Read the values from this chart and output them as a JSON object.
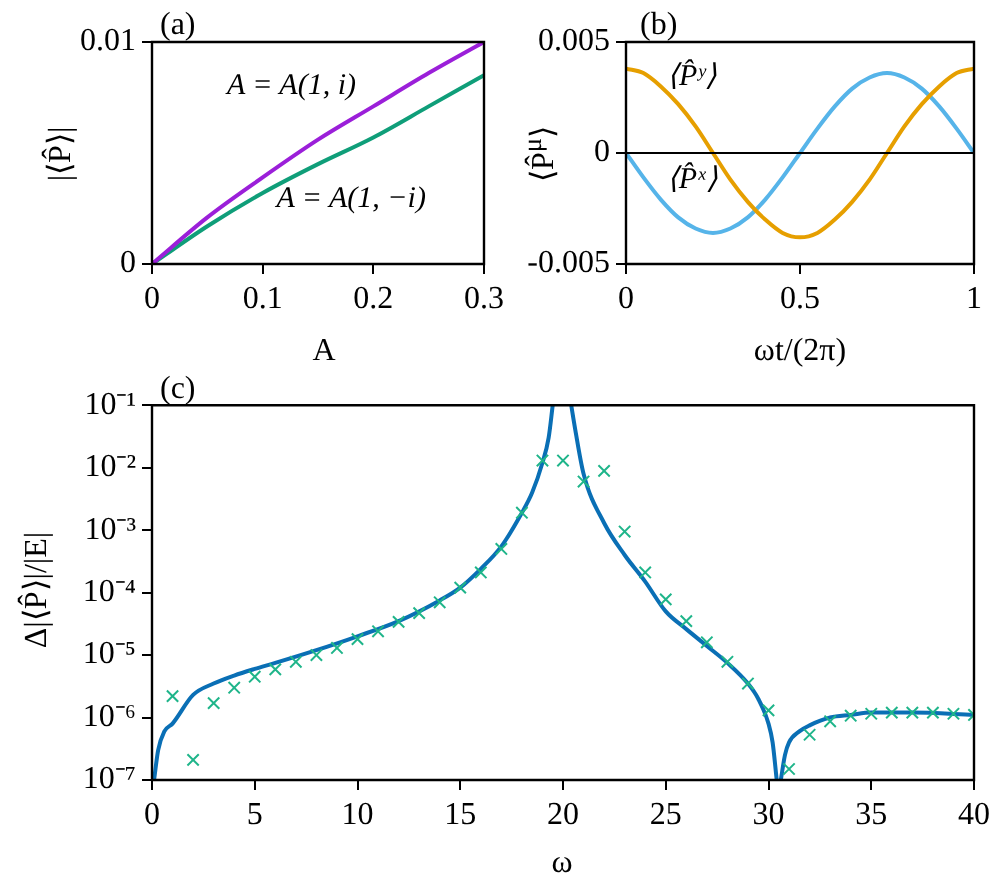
{
  "chart_data": [
    {
      "type": "line",
      "title": "(a)",
      "xlabel": "A",
      "ylabel": "|⟨P̂⟩|",
      "x": [
        0,
        0.05,
        0.1,
        0.15,
        0.2,
        0.25,
        0.3
      ],
      "series": [
        {
          "name": "A = A(1, i)",
          "color": "#9b1fd9",
          "values": [
            0,
            0.0021,
            0.0039,
            0.0056,
            0.0071,
            0.0086,
            0.01
          ]
        },
        {
          "name": "A = A(1, −i)",
          "color": "#0f9e79",
          "values": [
            0,
            0.0017,
            0.0032,
            0.0045,
            0.0057,
            0.0071,
            0.0085
          ]
        }
      ],
      "xlim": [
        0,
        0.3
      ],
      "xticks": [
        0,
        0.1,
        0.2,
        0.3
      ],
      "ylim": [
        0,
        0.01
      ],
      "yticks": [
        0,
        0.01
      ]
    },
    {
      "type": "line",
      "title": "(b)",
      "xlabel": "ωt/(2π)",
      "ylabel": "⟨P̂$^{μ}$⟩",
      "x": [
        0,
        0.05,
        0.1,
        0.15,
        0.2,
        0.25,
        0.3,
        0.35,
        0.4,
        0.45,
        0.5,
        0.55,
        0.6,
        0.65,
        0.7,
        0.75,
        0.8,
        0.85,
        0.9,
        0.95,
        1
      ],
      "series": [
        {
          "name": "⟨P̂ʸ⟩",
          "color": "#e69f00",
          "values": [
            0.0038,
            0.0036,
            0.003,
            0.0022,
            0.0012,
            0,
            -0.0012,
            -0.0022,
            -0.003,
            -0.0036,
            -0.0038,
            -0.0036,
            -0.003,
            -0.0022,
            -0.0012,
            0,
            0.0012,
            0.0022,
            0.003,
            0.0036,
            0.0038
          ]
        },
        {
          "name": "⟨P̂ˣ⟩",
          "color": "#56b4e9",
          "values": [
            0,
            -0.0011,
            -0.0021,
            -0.0029,
            -0.0034,
            -0.0036,
            -0.0034,
            -0.0029,
            -0.0021,
            -0.0011,
            0,
            0.0011,
            0.0021,
            0.0029,
            0.0034,
            0.0036,
            0.0034,
            0.0029,
            0.0021,
            0.0011,
            0
          ]
        }
      ],
      "xlim": [
        0,
        1
      ],
      "xticks": [
        0,
        0.5,
        1
      ],
      "ylim": [
        -0.005,
        0.005
      ],
      "yticks": [
        -0.005,
        0,
        0.005
      ],
      "ref_lines": [
        {
          "axis": "y",
          "value": 0,
          "color": "#000000"
        }
      ]
    },
    {
      "type": "line",
      "title": "(c)",
      "xlabel": "ω",
      "ylabel": "Δ|⟨P̂⟩|/|E|",
      "log": "y",
      "series": [
        {
          "color": "#0a6fb5",
          "x": [
            0.1,
            0.3,
            0.6,
            1,
            2,
            3,
            4,
            5,
            6,
            8,
            10,
            12,
            14,
            15,
            16,
            17,
            18,
            18.5,
            19,
            19.3,
            19.5,
            20,
            20.4,
            20.6,
            21,
            22,
            23,
            24,
            25,
            26,
            27,
            28,
            29,
            29.5,
            30,
            30.2,
            30.4,
            30.5,
            30.6,
            30.8,
            31,
            31.5,
            32,
            33,
            34,
            35,
            37,
            40
          ],
          "values": [
            1e-07,
            3e-07,
            6e-07,
            8e-07,
            2.3e-06,
            3.5e-06,
            4.7e-06,
            6e-06,
            7.5e-06,
            1.2e-05,
            2e-05,
            3.5e-05,
            7.5e-05,
            0.00012,
            0.00024,
            0.00055,
            0.0019,
            0.004,
            0.012,
            0.03,
            0.1,
            null,
            0.1,
            0.04,
            0.008,
            0.0013,
            0.0004,
            0.00015,
            5e-05,
            2.6e-05,
            1.4e-05,
            7.5e-06,
            3.5e-06,
            2e-06,
            8e-07,
            4e-07,
            1e-07,
            null,
            1e-07,
            2.5e-07,
            4e-07,
            6e-07,
            7.5e-07,
            1e-06,
            1.1e-06,
            1.2e-06,
            1.2e-06,
            1.1e-06
          ]
        },
        {
          "type": "scatter",
          "marker": "cross",
          "color": "#1fb58a",
          "x": [
            1,
            2,
            3,
            4,
            5,
            6,
            7,
            8,
            9,
            10,
            11,
            12,
            13,
            14,
            15,
            16,
            17,
            18,
            19,
            20,
            21,
            22,
            23,
            24,
            25,
            26,
            27,
            28,
            29,
            30,
            31,
            32,
            33,
            34,
            35,
            36,
            37,
            38,
            39,
            40
          ],
          "values": [
            2.2e-06,
            2.1e-07,
            1.7e-06,
            3e-06,
            4.5e-06,
            5.9e-06,
            7.8e-06,
            1e-05,
            1.3e-05,
            1.8e-05,
            2.4e-05,
            3.4e-05,
            4.7e-05,
            7e-05,
            0.00012,
            0.00021,
            0.0005,
            0.0019,
            0.013,
            0.013,
            0.006,
            0.0089,
            0.00095,
            0.00021,
            7.8e-05,
            3.5e-05,
            1.6e-05,
            7.8e-06,
            3.5e-06,
            1.3e-06,
            1.5e-07,
            5.3e-07,
            8.7e-07,
            1.07e-06,
            1.15e-06,
            1.2e-06,
            1.2e-06,
            1.2e-06,
            1.15e-06,
            1.1e-06
          ]
        }
      ],
      "xlim": [
        0,
        40
      ],
      "xticks": [
        0,
        5,
        10,
        15,
        20,
        25,
        30,
        35,
        40
      ],
      "ylim": [
        1e-07,
        0.1
      ],
      "yticks": [
        {
          "value": 1e-07,
          "label": "10⁻⁷"
        },
        {
          "value": 1e-06,
          "label": "10⁻⁶"
        },
        {
          "value": 1e-05,
          "label": "10⁻⁵"
        },
        {
          "value": 0.0001,
          "label": "10⁻⁴"
        },
        {
          "value": 0.001,
          "label": "10⁻³"
        },
        {
          "value": 0.01,
          "label": "10⁻²"
        },
        {
          "value": 0.1,
          "label": "10⁻¹"
        }
      ]
    }
  ]
}
